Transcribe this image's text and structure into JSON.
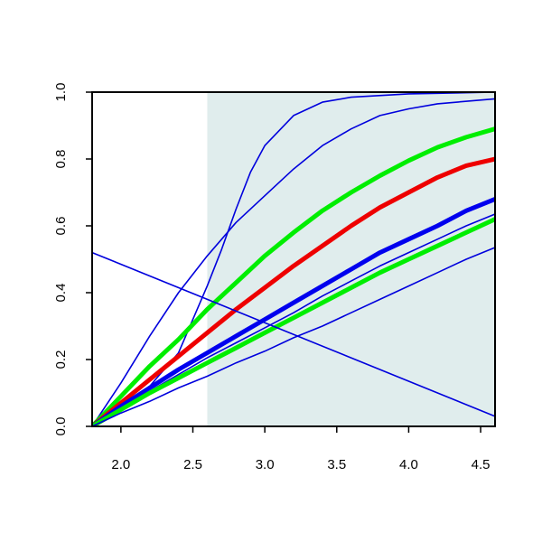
{
  "chart_data": {
    "type": "line",
    "title": "",
    "xlabel": "",
    "ylabel": "",
    "xlim": [
      1.8,
      4.6
    ],
    "ylim": [
      0,
      1
    ],
    "x_ticks": [
      {
        "value": 2.0,
        "label": "2.0"
      },
      {
        "value": 2.5,
        "label": "2.5"
      },
      {
        "value": 3.0,
        "label": "3.0"
      },
      {
        "value": 3.5,
        "label": "3.5"
      },
      {
        "value": 4.0,
        "label": "4.0"
      },
      {
        "value": 4.5,
        "label": "4.5"
      }
    ],
    "y_ticks": [
      {
        "value": 0.0,
        "label": "0.0"
      },
      {
        "value": 0.2,
        "label": "0.2"
      },
      {
        "value": 0.4,
        "label": "0.4"
      },
      {
        "value": 0.6,
        "label": "0.6"
      },
      {
        "value": 0.8,
        "label": "0.8"
      },
      {
        "value": 1.0,
        "label": "1.0"
      }
    ],
    "grid": false,
    "legend": "none",
    "shaded_region": {
      "x_from": 2.6,
      "x_to": 4.6,
      "color": "#e0eded"
    },
    "series": [
      {
        "color": "#0000dd",
        "width": "thin",
        "points": [
          [
            1.8,
            0.0
          ],
          [
            2.0,
            0.05
          ],
          [
            2.2,
            0.12
          ],
          [
            2.4,
            0.22
          ],
          [
            2.6,
            0.42
          ],
          [
            2.7,
            0.53
          ],
          [
            2.8,
            0.65
          ],
          [
            2.9,
            0.76
          ],
          [
            3.0,
            0.84
          ],
          [
            3.2,
            0.93
          ],
          [
            3.4,
            0.97
          ],
          [
            3.6,
            0.985
          ],
          [
            4.0,
            0.995
          ],
          [
            4.6,
            1.0
          ]
        ]
      },
      {
        "color": "#0000dd",
        "width": "thin",
        "points": [
          [
            1.8,
            0.0
          ],
          [
            2.0,
            0.13
          ],
          [
            2.2,
            0.27
          ],
          [
            2.4,
            0.4
          ],
          [
            2.6,
            0.51
          ],
          [
            2.8,
            0.61
          ],
          [
            3.0,
            0.69
          ],
          [
            3.2,
            0.77
          ],
          [
            3.4,
            0.84
          ],
          [
            3.6,
            0.89
          ],
          [
            3.8,
            0.93
          ],
          [
            4.0,
            0.95
          ],
          [
            4.2,
            0.965
          ],
          [
            4.6,
            0.98
          ]
        ]
      },
      {
        "color": "#00ee00",
        "width": "thick",
        "points": [
          [
            1.8,
            0.0
          ],
          [
            2.0,
            0.09
          ],
          [
            2.2,
            0.18
          ],
          [
            2.4,
            0.26
          ],
          [
            2.6,
            0.35
          ],
          [
            2.8,
            0.43
          ],
          [
            3.0,
            0.51
          ],
          [
            3.2,
            0.58
          ],
          [
            3.4,
            0.645
          ],
          [
            3.6,
            0.7
          ],
          [
            3.8,
            0.75
          ],
          [
            4.0,
            0.795
          ],
          [
            4.2,
            0.835
          ],
          [
            4.4,
            0.865
          ],
          [
            4.6,
            0.89
          ]
        ]
      },
      {
        "color": "#ee0000",
        "width": "thick",
        "points": [
          [
            1.8,
            0.0
          ],
          [
            2.0,
            0.07
          ],
          [
            2.2,
            0.14
          ],
          [
            2.4,
            0.21
          ],
          [
            2.6,
            0.28
          ],
          [
            2.8,
            0.35
          ],
          [
            3.0,
            0.415
          ],
          [
            3.2,
            0.48
          ],
          [
            3.4,
            0.54
          ],
          [
            3.6,
            0.6
          ],
          [
            3.8,
            0.655
          ],
          [
            4.0,
            0.7
          ],
          [
            4.2,
            0.745
          ],
          [
            4.4,
            0.78
          ],
          [
            4.6,
            0.8
          ]
        ]
      },
      {
        "color": "#0000ee",
        "width": "thick",
        "points": [
          [
            1.8,
            0.0
          ],
          [
            2.0,
            0.06
          ],
          [
            2.2,
            0.115
          ],
          [
            2.4,
            0.17
          ],
          [
            2.6,
            0.22
          ],
          [
            2.8,
            0.27
          ],
          [
            3.0,
            0.32
          ],
          [
            3.2,
            0.37
          ],
          [
            3.4,
            0.42
          ],
          [
            3.6,
            0.47
          ],
          [
            3.8,
            0.52
          ],
          [
            4.0,
            0.56
          ],
          [
            4.2,
            0.6
          ],
          [
            4.4,
            0.645
          ],
          [
            4.6,
            0.68
          ]
        ]
      },
      {
        "color": "#0000dd",
        "width": "thin",
        "points": [
          [
            1.8,
            0.0
          ],
          [
            2.0,
            0.055
          ],
          [
            2.2,
            0.105
          ],
          [
            2.4,
            0.155
          ],
          [
            2.6,
            0.205
          ],
          [
            2.8,
            0.25
          ],
          [
            3.0,
            0.295
          ],
          [
            3.2,
            0.34
          ],
          [
            3.4,
            0.39
          ],
          [
            3.6,
            0.435
          ],
          [
            3.8,
            0.48
          ],
          [
            4.0,
            0.52
          ],
          [
            4.2,
            0.56
          ],
          [
            4.4,
            0.6
          ],
          [
            4.6,
            0.635
          ]
        ]
      },
      {
        "color": "#00ee00",
        "width": "thick",
        "points": [
          [
            1.8,
            0.0
          ],
          [
            2.0,
            0.05
          ],
          [
            2.2,
            0.1
          ],
          [
            2.4,
            0.145
          ],
          [
            2.6,
            0.19
          ],
          [
            2.8,
            0.235
          ],
          [
            3.0,
            0.28
          ],
          [
            3.2,
            0.325
          ],
          [
            3.4,
            0.37
          ],
          [
            3.6,
            0.415
          ],
          [
            3.8,
            0.46
          ],
          [
            4.0,
            0.5
          ],
          [
            4.2,
            0.54
          ],
          [
            4.4,
            0.58
          ],
          [
            4.6,
            0.62
          ]
        ]
      },
      {
        "color": "#0000dd",
        "width": "thin",
        "points": [
          [
            1.8,
            0.0
          ],
          [
            2.0,
            0.04
          ],
          [
            2.2,
            0.075
          ],
          [
            2.4,
            0.115
          ],
          [
            2.6,
            0.15
          ],
          [
            2.8,
            0.19
          ],
          [
            3.0,
            0.225
          ],
          [
            3.2,
            0.265
          ],
          [
            3.4,
            0.3
          ],
          [
            3.6,
            0.34
          ],
          [
            3.8,
            0.38
          ],
          [
            4.0,
            0.42
          ],
          [
            4.2,
            0.46
          ],
          [
            4.4,
            0.5
          ],
          [
            4.6,
            0.535
          ]
        ]
      },
      {
        "color": "#0000dd",
        "width": "thin",
        "points": [
          [
            1.8,
            0.52
          ],
          [
            4.6,
            0.03
          ]
        ]
      }
    ]
  }
}
